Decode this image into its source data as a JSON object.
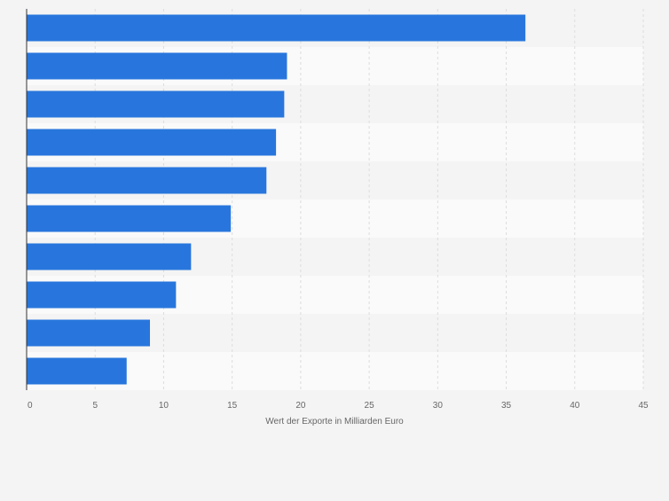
{
  "chart_data": {
    "type": "bar",
    "orientation": "horizontal",
    "categories": [
      "",
      "",
      "",
      "",
      "",
      "",
      "",
      "",
      "",
      ""
    ],
    "values": [
      36.4,
      19.0,
      18.8,
      18.2,
      17.5,
      14.9,
      12.0,
      10.9,
      9.0,
      7.3
    ],
    "title": "",
    "xlabel": "Wert der Exporte in Milliarden Euro",
    "ylabel": "",
    "xlim": [
      0,
      45
    ],
    "xticks": [
      "0",
      "5",
      "10",
      "15",
      "20",
      "25",
      "30",
      "35",
      "40",
      "45"
    ],
    "grid": true,
    "legend": "none",
    "colors": {
      "bar": "#2876dd",
      "band_light": "#fafafa",
      "band_dark": "#f4f4f4",
      "grid": "#dddddd",
      "axis": "#333333",
      "tick_text": "#666666",
      "label_text": "#666666"
    }
  }
}
